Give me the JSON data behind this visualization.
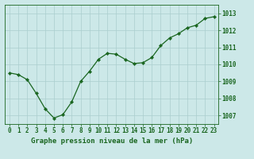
{
  "x": [
    0,
    1,
    2,
    3,
    4,
    5,
    6,
    7,
    8,
    9,
    10,
    11,
    12,
    13,
    14,
    15,
    16,
    17,
    18,
    19,
    20,
    21,
    22,
    23
  ],
  "y": [
    1009.5,
    1009.4,
    1009.1,
    1008.3,
    1007.4,
    1006.85,
    1007.05,
    1007.8,
    1009.0,
    1009.6,
    1010.3,
    1010.65,
    1010.6,
    1010.3,
    1010.05,
    1010.1,
    1010.4,
    1011.1,
    1011.55,
    1011.8,
    1012.15,
    1012.3,
    1012.7,
    1012.8
  ],
  "line_color": "#1a6620",
  "marker_color": "#1a6620",
  "bg_color": "#cce8e8",
  "grid_color": "#aacece",
  "title": "Graphe pression niveau de la mer (hPa)",
  "title_color": "#1a6620",
  "tick_color": "#1a6620",
  "ylim": [
    1006.5,
    1013.5
  ],
  "yticks": [
    1007,
    1008,
    1009,
    1010,
    1011,
    1012,
    1013
  ],
  "xticks": [
    0,
    1,
    2,
    3,
    4,
    5,
    6,
    7,
    8,
    9,
    10,
    11,
    12,
    13,
    14,
    15,
    16,
    17,
    18,
    19,
    20,
    21,
    22,
    23
  ],
  "tick_fontsize": 5.5,
  "title_fontsize": 6.5
}
